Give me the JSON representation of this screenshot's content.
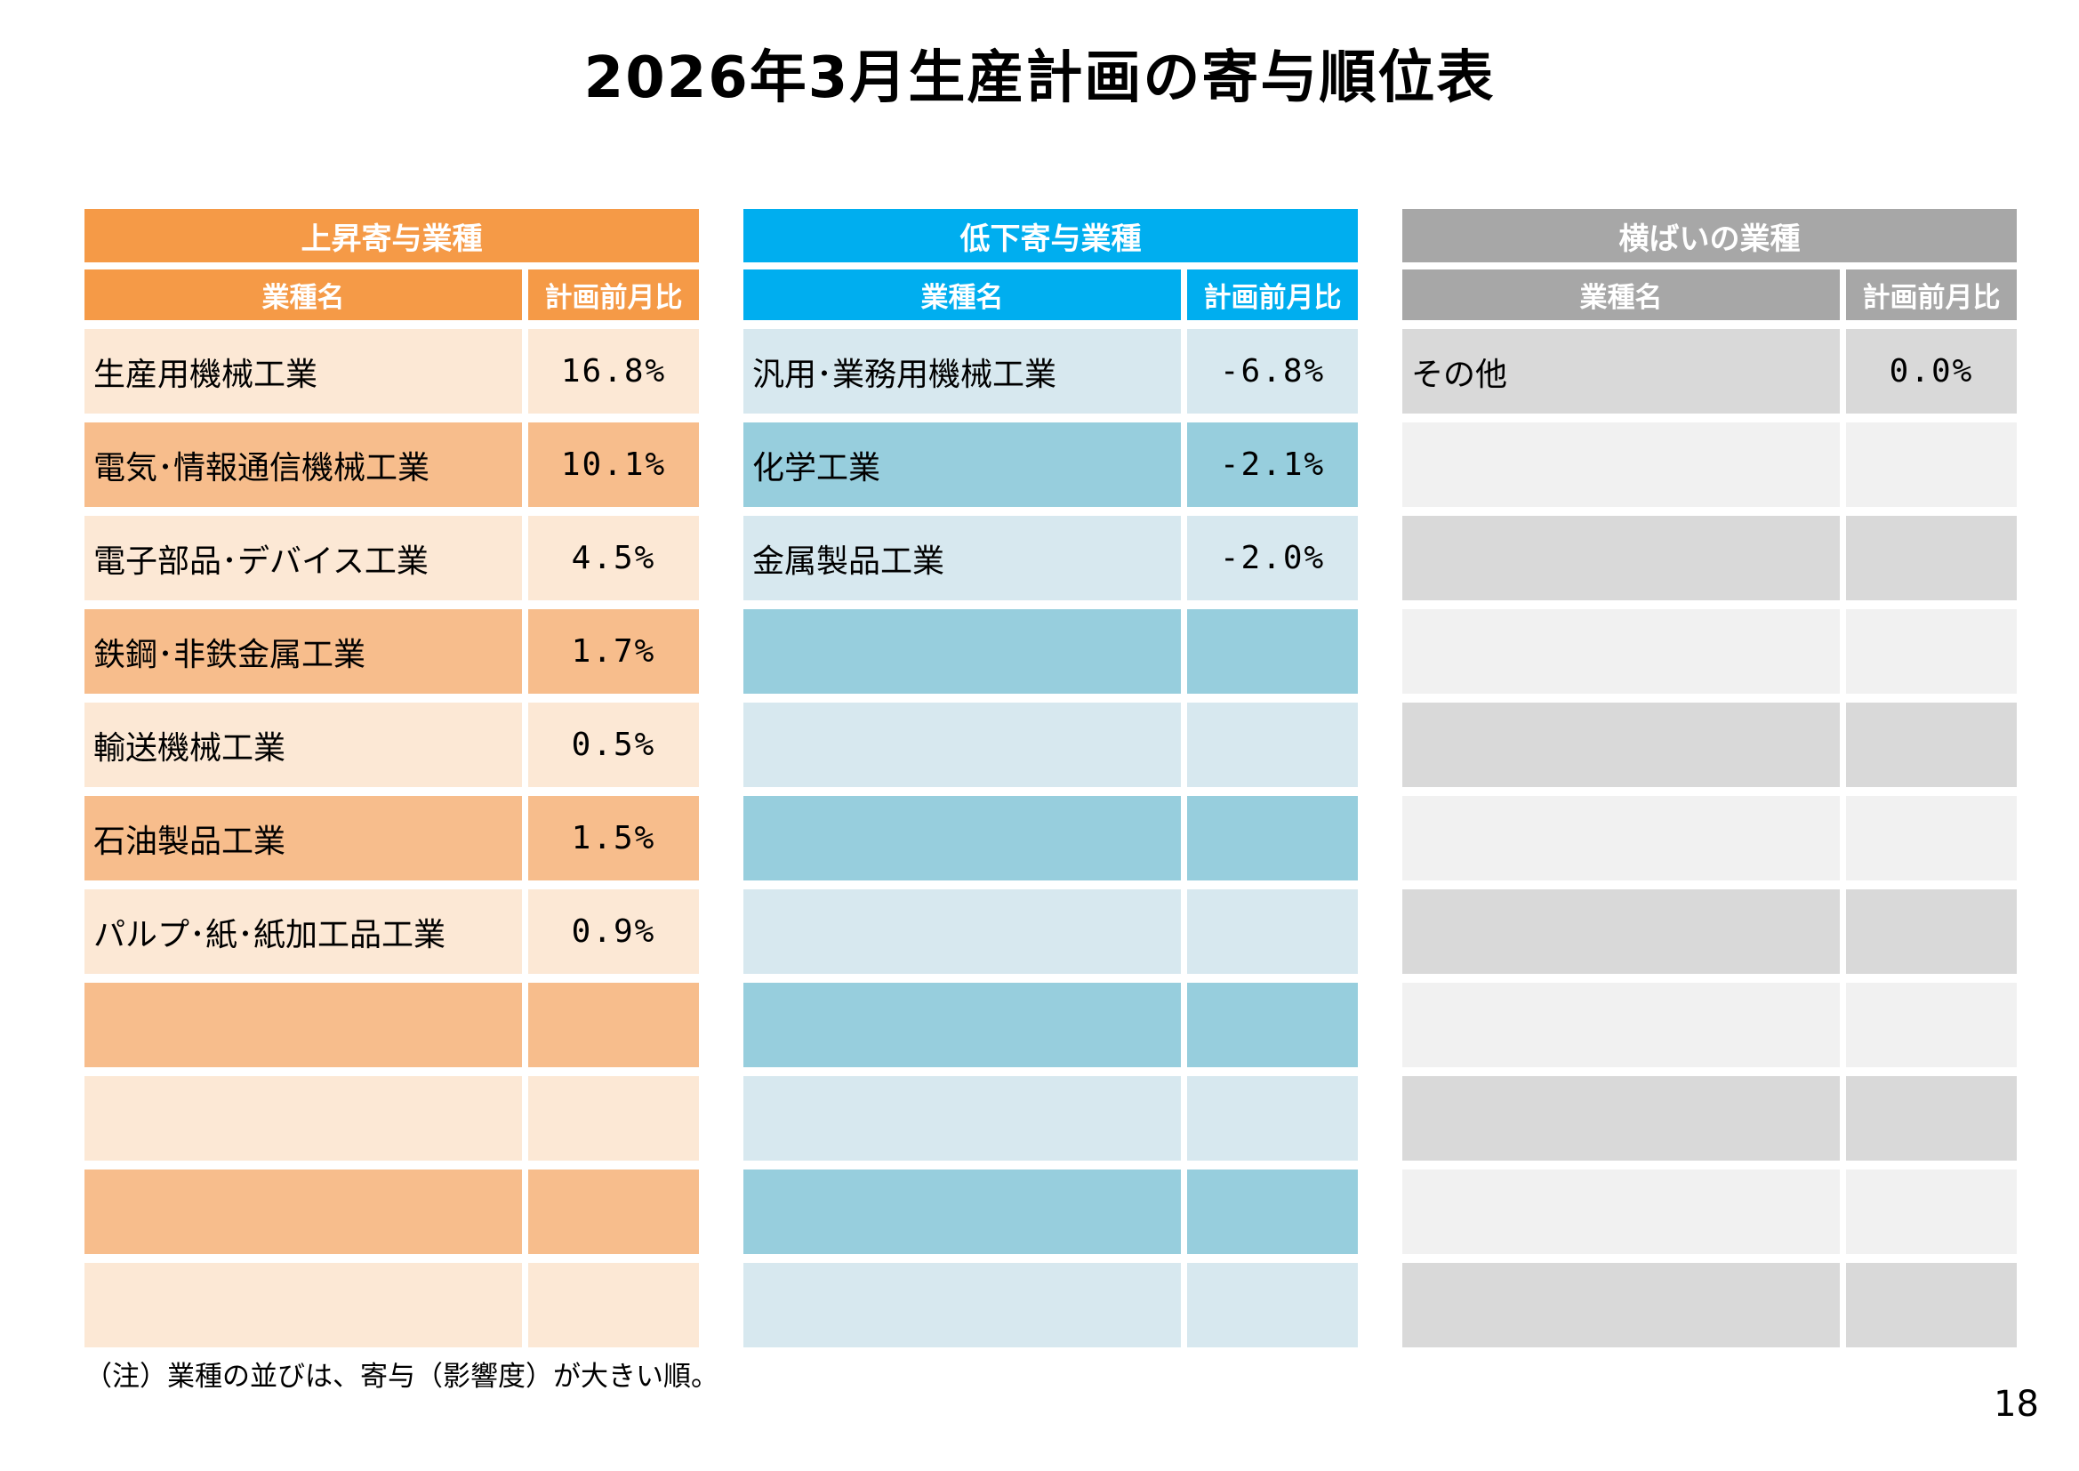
{
  "page": {
    "title": "2026年3月生産計画の寄与順位表",
    "note": "（注）業種の並びは、寄与（影響度）が大きい順。",
    "page_number": "18"
  },
  "tables": [
    {
      "title": "上昇寄与業種",
      "col_industry": "業種名",
      "col_ratio": "計画前月比",
      "colors": {
        "header": "#F59A47",
        "row_odd": "#FCE8D5",
        "row_even": "#F7BD8C"
      },
      "rows": [
        {
          "name": "生産用機械工業",
          "value": "16.8%"
        },
        {
          "name": "電気･情報通信機械工業",
          "value": "10.1%"
        },
        {
          "name": "電子部品･デバイス工業",
          "value": "4.5%"
        },
        {
          "name": "鉄鋼･非鉄金属工業",
          "value": "1.7%"
        },
        {
          "name": "輸送機械工業",
          "value": "0.5%"
        },
        {
          "name": "石油製品工業",
          "value": "1.5%"
        },
        {
          "name": "パルプ･紙･紙加工品工業",
          "value": "0.9%"
        },
        {
          "name": "",
          "value": ""
        },
        {
          "name": "",
          "value": ""
        },
        {
          "name": "",
          "value": ""
        },
        {
          "name": "",
          "value": ""
        }
      ]
    },
    {
      "title": "低下寄与業種",
      "col_industry": "業種名",
      "col_ratio": "計画前月比",
      "colors": {
        "header": "#00AEEF",
        "row_odd": "#D7E8EF",
        "row_even": "#97CEDD"
      },
      "rows": [
        {
          "name": "汎用･業務用機械工業",
          "value": "-6.8%"
        },
        {
          "name": "化学工業",
          "value": "-2.1%"
        },
        {
          "name": "金属製品工業",
          "value": "-2.0%"
        },
        {
          "name": "",
          "value": ""
        },
        {
          "name": "",
          "value": ""
        },
        {
          "name": "",
          "value": ""
        },
        {
          "name": "",
          "value": ""
        },
        {
          "name": "",
          "value": ""
        },
        {
          "name": "",
          "value": ""
        },
        {
          "name": "",
          "value": ""
        },
        {
          "name": "",
          "value": ""
        }
      ]
    },
    {
      "title": "横ばいの業種",
      "col_industry": "業種名",
      "col_ratio": "計画前月比",
      "colors": {
        "header": "#A7A7A7",
        "row_odd": "#D9D9D9",
        "row_even": "#F1F1F1"
      },
      "rows": [
        {
          "name": "その他",
          "value": "0.0%"
        },
        {
          "name": "",
          "value": ""
        },
        {
          "name": "",
          "value": ""
        },
        {
          "name": "",
          "value": ""
        },
        {
          "name": "",
          "value": ""
        },
        {
          "name": "",
          "value": ""
        },
        {
          "name": "",
          "value": ""
        },
        {
          "name": "",
          "value": ""
        },
        {
          "name": "",
          "value": ""
        },
        {
          "name": "",
          "value": ""
        },
        {
          "name": "",
          "value": ""
        }
      ]
    }
  ]
}
